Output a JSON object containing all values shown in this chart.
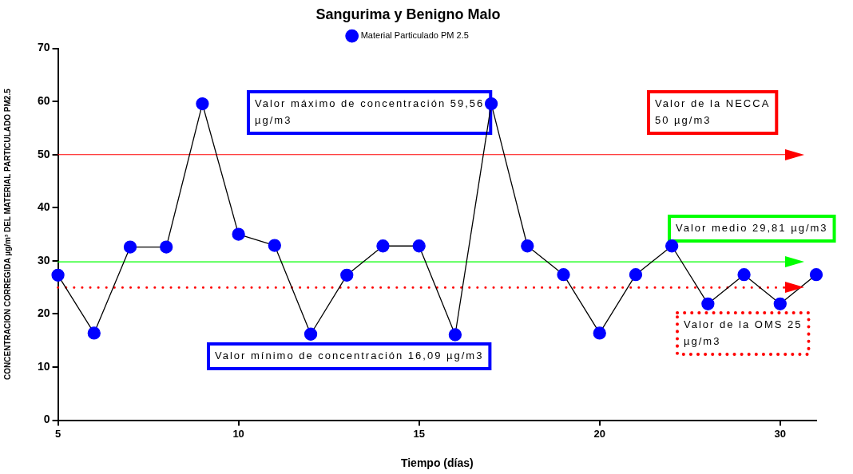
{
  "chart_data": {
    "type": "line",
    "title": "Sangurima y Benigno Malo",
    "xlabel": "Tiempo (días)",
    "ylabel": "CONCENTRACION CORREGIDA µg/m³ DEL MATERIAL PARTICULADO PM2.5",
    "categories": [
      "5",
      null,
      null,
      null,
      null,
      "10",
      null,
      null,
      null,
      null,
      "15",
      null,
      null,
      null,
      null,
      "20",
      null,
      null,
      null,
      null,
      "30",
      null
    ],
    "series": [
      {
        "name": "Material Particulado PM 2.5",
        "color": "#0000ff",
        "values": [
          27.3,
          16.4,
          32.6,
          32.6,
          59.56,
          35.0,
          32.9,
          16.2,
          27.3,
          32.8,
          32.8,
          16.09,
          59.56,
          32.8,
          27.4,
          16.4,
          27.4,
          32.8,
          21.9,
          27.4,
          21.9,
          27.4
        ]
      }
    ],
    "ylim": [
      0,
      70
    ],
    "yticks": [
      0,
      10,
      20,
      30,
      40,
      50,
      60,
      70
    ],
    "grid": false,
    "legend": "top",
    "marker": "circle",
    "line_style": "solid",
    "ref_lines": [
      {
        "axis": "y",
        "value": 50,
        "label": "Valor de la NECCA 50 µg/m3",
        "color": "#ff0000",
        "line_style": "solid"
      },
      {
        "axis": "y",
        "value": 29.81,
        "label": "Valor medio 29,81 µg/m3",
        "color": "#00ff00",
        "line_style": "solid"
      },
      {
        "axis": "y",
        "value": 25,
        "label": "Valor de la OMS 25 µg/m3",
        "color": "#ff0000",
        "line_style": "dotted"
      }
    ],
    "annotations": [
      "Valor máximo de concentración 59,56 µg/m3",
      "Valor mínimo de concentración 16,09 µg/m3"
    ]
  }
}
